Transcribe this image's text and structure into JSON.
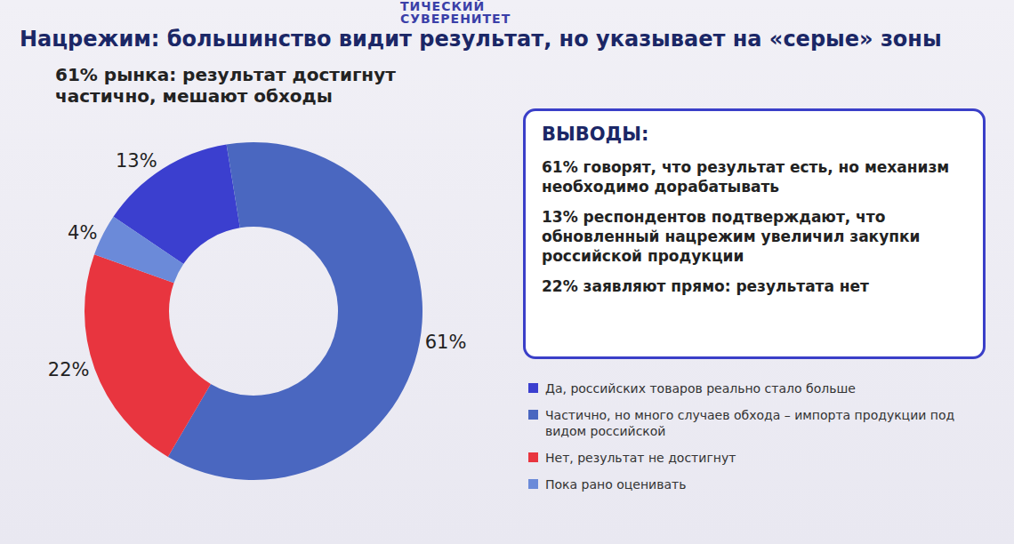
{
  "header": [
    "ТИЧЕСКИЙ",
    "СУВЕРЕНИТЕТ"
  ],
  "chart_data": {
    "type": "pie",
    "title": "Нацрежим: большинство видит результат, но указывает на «серые» зоны",
    "subtitle": [
      "61% рынка: результат достигнут",
      "частично, мешают обходы"
    ],
    "categories": [
      "Да, российских товаров реально стало больше",
      "Частично, но много случаев обхода – импорта продукции под видом российской",
      "Нет, результат не достигнут",
      "Пока рано оценивать"
    ],
    "values": [
      13,
      61,
      22,
      4
    ],
    "value_labels": [
      "13%",
      "61%",
      "22%",
      "4%"
    ],
    "colors": [
      "#3b3fcf",
      "#4a67c0",
      "#e8353f",
      "#6b8ad9"
    ],
    "data_labels": true,
    "legend": "right"
  },
  "conclusions": {
    "title": "ВЫВОДЫ:",
    "items": [
      "61% говорят, что результат есть, но механизм необходимо дорабатывать",
      "13% респондентов подтверждают, что обновленный нацрежим увеличил закупки российской продукции",
      "22% заявляют прямо: результата нет"
    ]
  }
}
